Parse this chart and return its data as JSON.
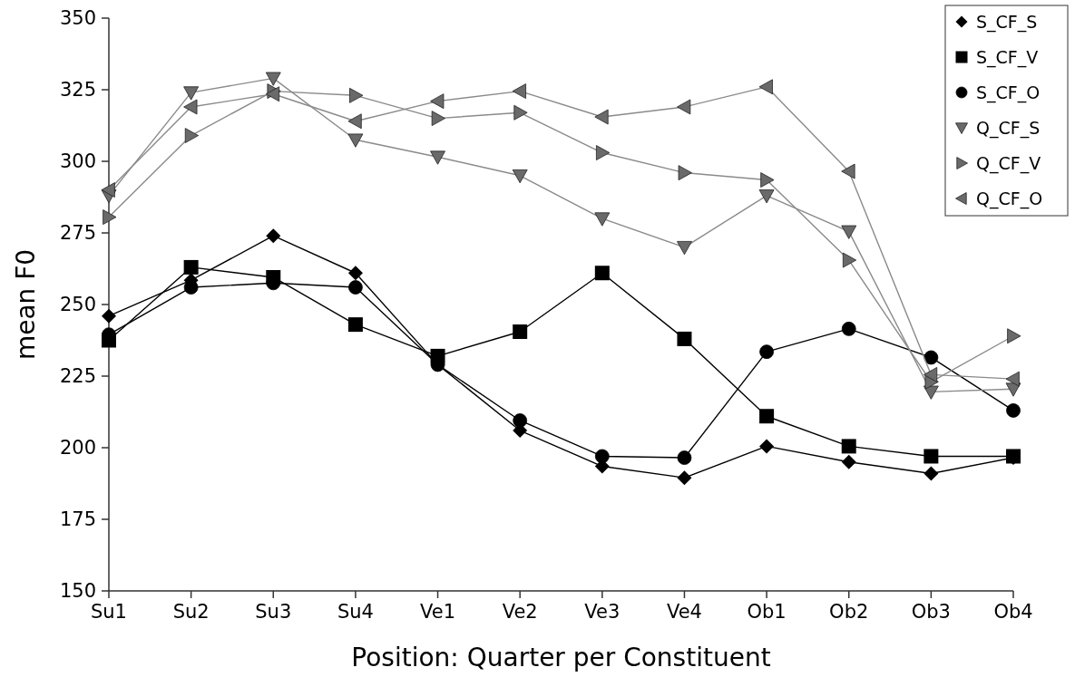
{
  "chart_data": {
    "type": "line",
    "xlabel": "Position: Quarter per Constituent",
    "ylabel": "mean F0",
    "categories": [
      "Su1",
      "Su2",
      "Su3",
      "Su4",
      "Ve1",
      "Ve2",
      "Ve3",
      "Ve4",
      "Ob1",
      "Ob2",
      "Ob3",
      "Ob4"
    ],
    "ylim": [
      150,
      350
    ],
    "yticks": [
      150,
      175,
      200,
      225,
      250,
      275,
      300,
      325,
      350
    ],
    "grid": false,
    "legend": "top right",
    "line_style": "solid",
    "series": [
      {
        "name": "S_CF_S",
        "color": "#000000",
        "marker": "diamond",
        "values": [
          246,
          258.5,
          274,
          261,
          229,
          206,
          193.5,
          189.5,
          200.5,
          195,
          191,
          196.5
        ]
      },
      {
        "name": "S_CF_V",
        "color": "#000000",
        "marker": "square",
        "values": [
          237.5,
          263,
          259.5,
          243,
          232,
          240.5,
          261,
          238,
          211,
          200.5,
          197,
          197
        ]
      },
      {
        "name": "S_CF_O",
        "color": "#000000",
        "marker": "circle",
        "values": [
          239.5,
          256,
          257.5,
          256,
          229,
          209.5,
          197,
          196.5,
          233.5,
          241.5,
          231.5,
          213
        ]
      },
      {
        "name": "Q_CF_S",
        "color": "#6a6a6a",
        "marker": "triangle-down",
        "values": [
          288,
          324,
          329,
          307.5,
          301.5,
          295,
          280,
          270,
          288,
          275.5,
          219.5,
          220.5
        ]
      },
      {
        "name": "Q_CF_V",
        "color": "#6a6a6a",
        "marker": "triangle-right",
        "values": [
          280.5,
          309,
          324.5,
          323,
          315,
          317,
          303,
          296,
          293.5,
          265.5,
          223,
          239
        ]
      },
      {
        "name": "Q_CF_O",
        "color": "#6a6a6a",
        "marker": "triangle-left",
        "values": [
          290,
          319,
          323.5,
          314,
          321,
          324.5,
          315.5,
          319,
          326,
          296.5,
          225.5,
          224
        ]
      }
    ]
  }
}
